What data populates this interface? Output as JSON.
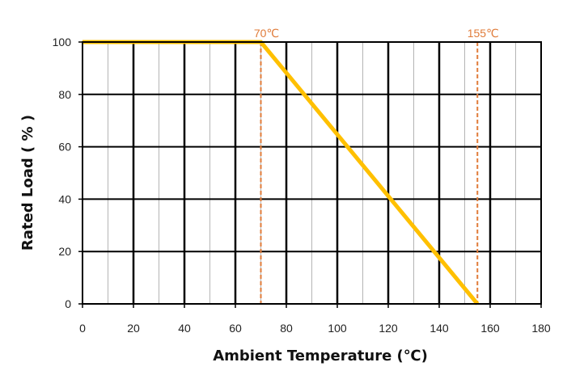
{
  "chart_data": {
    "type": "line",
    "title": "",
    "xlabel": "Ambient Temperature (℃)",
    "ylabel": "Rated Load ( % )",
    "xlim": [
      0,
      180
    ],
    "ylim": [
      0,
      100
    ],
    "xticks": [
      0,
      20,
      40,
      60,
      80,
      100,
      120,
      140,
      160,
      180
    ],
    "yticks": [
      0,
      20,
      40,
      60,
      80,
      100
    ],
    "grid": true,
    "legend": "none",
    "series": [
      {
        "color": "#FFC000",
        "points": [
          {
            "x": 0,
            "y": 100
          },
          {
            "x": 70,
            "y": 100
          },
          {
            "x": 155,
            "y": 0
          }
        ]
      }
    ],
    "annotations": [
      {
        "x": 70,
        "label": "70℃",
        "color": "#E07B39"
      },
      {
        "x": 155,
        "label": "155℃",
        "color": "#E07B39"
      }
    ]
  }
}
